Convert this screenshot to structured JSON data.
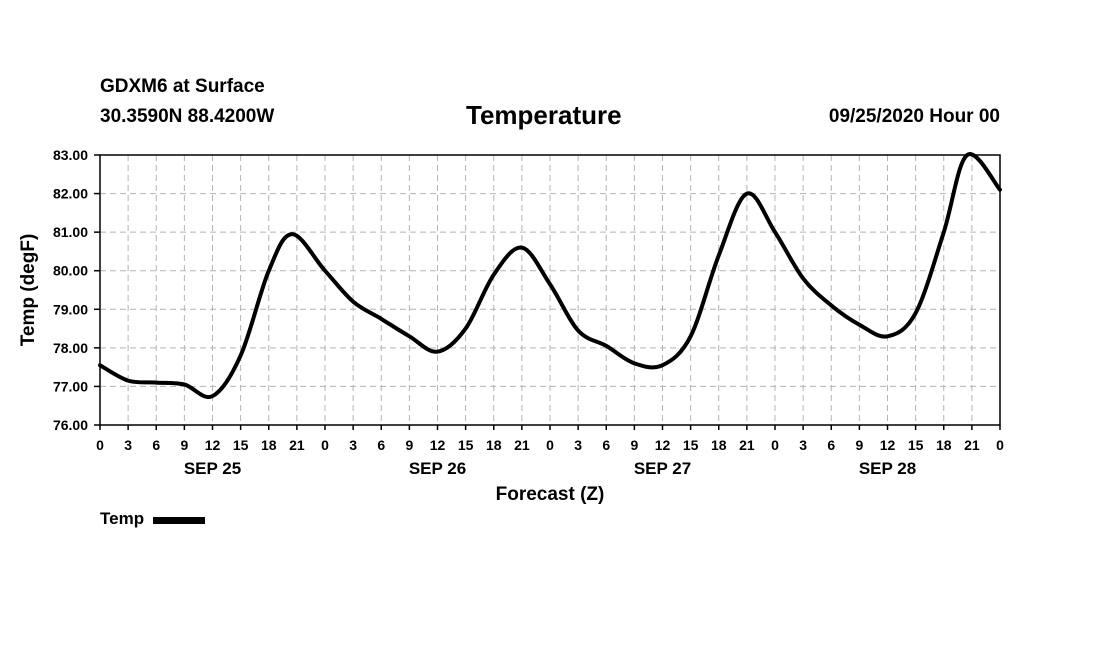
{
  "header": {
    "station": "GDXM6 at Surface",
    "coords": "30.3590N 88.4200W",
    "title": "Temperature",
    "datetime": "09/25/2020 Hour 00"
  },
  "legend": {
    "label": "Temp"
  },
  "chart_data": {
    "type": "line",
    "title": "Temperature",
    "xlabel": "Forecast (Z)",
    "ylabel": "Temp (degF)",
    "ylim": [
      76,
      83
    ],
    "yticks": [
      "76.00",
      "77.00",
      "78.00",
      "79.00",
      "80.00",
      "81.00",
      "82.00",
      "83.00"
    ],
    "xlim": [
      0,
      96
    ],
    "xticks": [
      "0",
      "3",
      "6",
      "9",
      "12",
      "15",
      "18",
      "21",
      "0",
      "3",
      "6",
      "9",
      "12",
      "15",
      "18",
      "21",
      "0",
      "3",
      "6",
      "9",
      "12",
      "15",
      "18",
      "21",
      "0",
      "3",
      "6",
      "9",
      "12",
      "15",
      "18",
      "21",
      "0"
    ],
    "day_labels": [
      {
        "label": "SEP 25",
        "hour": 12
      },
      {
        "label": "SEP 26",
        "hour": 36
      },
      {
        "label": "SEP 27",
        "hour": 60
      },
      {
        "label": "SEP 28",
        "hour": 84
      }
    ],
    "grid": true,
    "legend": "bottom-left",
    "series": [
      {
        "name": "Temp",
        "color": "#000000",
        "x": [
          0,
          3,
          6,
          9,
          12,
          15,
          18,
          20.5,
          24,
          27,
          30,
          33,
          36,
          39,
          42,
          45,
          48,
          51,
          54,
          57,
          60,
          63,
          66,
          69,
          72,
          75,
          78,
          81,
          84,
          87,
          90,
          92.5,
          96
        ],
        "y": [
          77.55,
          77.15,
          77.1,
          77.05,
          76.75,
          77.8,
          80.0,
          80.95,
          80.0,
          79.2,
          78.75,
          78.3,
          77.9,
          78.5,
          79.9,
          80.6,
          79.65,
          78.45,
          78.05,
          77.6,
          77.55,
          78.3,
          80.4,
          82.0,
          81.0,
          79.8,
          79.1,
          78.6,
          78.3,
          78.9,
          81.0,
          83.0,
          82.1
        ]
      }
    ]
  }
}
